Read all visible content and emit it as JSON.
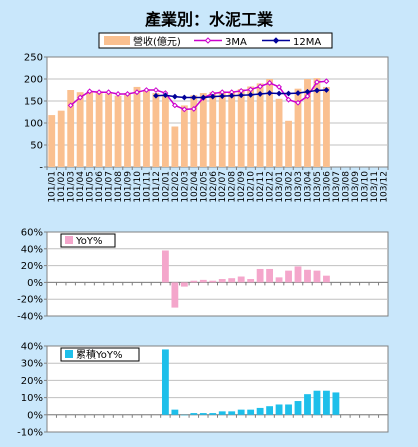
{
  "page_title": "產業別：水泥工業",
  "chart_data": [
    {
      "id": "revenue",
      "type": "bar+line",
      "ylim": [
        0,
        250
      ],
      "yticks": [
        "-",
        "50",
        "100",
        "150",
        "200",
        "250"
      ],
      "categories": [
        "101/01",
        "101/02",
        "101/03",
        "101/04",
        "101/05",
        "101/06",
        "101/07",
        "101/08",
        "101/09",
        "101/10",
        "101/11",
        "101/12",
        "102/01",
        "102/02",
        "102/03",
        "102/04",
        "102/05",
        "102/06",
        "102/07",
        "102/08",
        "102/09",
        "102/10",
        "102/11",
        "102/12",
        "103/01",
        "103/02",
        "103/03",
        "103/04",
        "103/05",
        "103/06",
        "103/07",
        "103/08",
        "103/09",
        "103/10",
        "103/11",
        "103/12"
      ],
      "x_tick_labels": [
        "101/01",
        "101/02",
        "101/03",
        "101/04",
        "101/05",
        "101/06",
        "101/07",
        "101/08",
        "101/09",
        "101/10",
        "101/11",
        "101/12",
        "102/01",
        "102/02",
        "102/03",
        "102/04",
        "102/05",
        "102/06",
        "102/07",
        "102/08",
        "102/09",
        "102/10",
        "102/11",
        "102/12",
        "103/01",
        "103/02",
        "103/03",
        "103/04",
        "103/05",
        "103/06",
        "103/07",
        "103/08",
        "103/09",
        "103/10",
        "103/11",
        "103/12"
      ],
      "series": [
        {
          "name": "營收(億元)",
          "kind": "bar",
          "color": "#fac090",
          "values": [
            118,
            128,
            175,
            170,
            170,
            172,
            167,
            162,
            168,
            182,
            175,
            168,
            162,
            92,
            140,
            163,
            168,
            170,
            172,
            170,
            177,
            183,
            190,
            200,
            155,
            105,
            178,
            200,
            202,
            182,
            null,
            null,
            null,
            null,
            null,
            null
          ]
        },
        {
          "name": "3MA",
          "kind": "line",
          "color": "#cc00cc",
          "values": [
            null,
            null,
            140,
            158,
            172,
            170,
            170,
            166,
            166,
            170,
            175,
            175,
            168,
            140,
            131,
            132,
            157,
            167,
            170,
            170,
            173,
            176,
            183,
            191,
            182,
            153,
            146,
            161,
            193,
            195,
            null,
            null,
            null,
            null,
            null,
            null
          ]
        },
        {
          "name": "12MA",
          "kind": "line",
          "color": "#000099",
          "values": [
            null,
            null,
            null,
            null,
            null,
            null,
            null,
            null,
            null,
            null,
            null,
            162,
            163,
            160,
            158,
            158,
            158,
            160,
            161,
            162,
            163,
            164,
            166,
            168,
            167,
            167,
            168,
            171,
            174,
            175,
            null,
            null,
            null,
            null,
            null,
            null
          ]
        }
      ]
    },
    {
      "id": "yoy",
      "type": "bar",
      "ylim": [
        -40,
        60
      ],
      "yticks": [
        "-40%",
        "-20%",
        "0%",
        "20%",
        "40%",
        "60%"
      ],
      "series": [
        {
          "name": "YoY%",
          "color": "#f4a6cb",
          "values": [
            null,
            null,
            null,
            null,
            null,
            null,
            null,
            null,
            null,
            null,
            null,
            null,
            38,
            -30,
            -5,
            2,
            3,
            2,
            4,
            5,
            7,
            4,
            16,
            16,
            6,
            14,
            19,
            15,
            14,
            8,
            null,
            null,
            null,
            null,
            null,
            null
          ]
        }
      ]
    },
    {
      "id": "cum_yoy",
      "type": "bar",
      "ylim": [
        -10,
        40
      ],
      "yticks": [
        "-10%",
        "0%",
        "10%",
        "20%",
        "30%",
        "40%"
      ],
      "series": [
        {
          "name": "累積YoY%",
          "color": "#1ebfea",
          "values": [
            null,
            null,
            null,
            null,
            null,
            null,
            null,
            null,
            null,
            null,
            null,
            null,
            38,
            3,
            0,
            1,
            1,
            1,
            2,
            2,
            3,
            3,
            4,
            5,
            6,
            6,
            8,
            12,
            14,
            14,
            13,
            null,
            null,
            null,
            null,
            null
          ]
        }
      ]
    }
  ]
}
